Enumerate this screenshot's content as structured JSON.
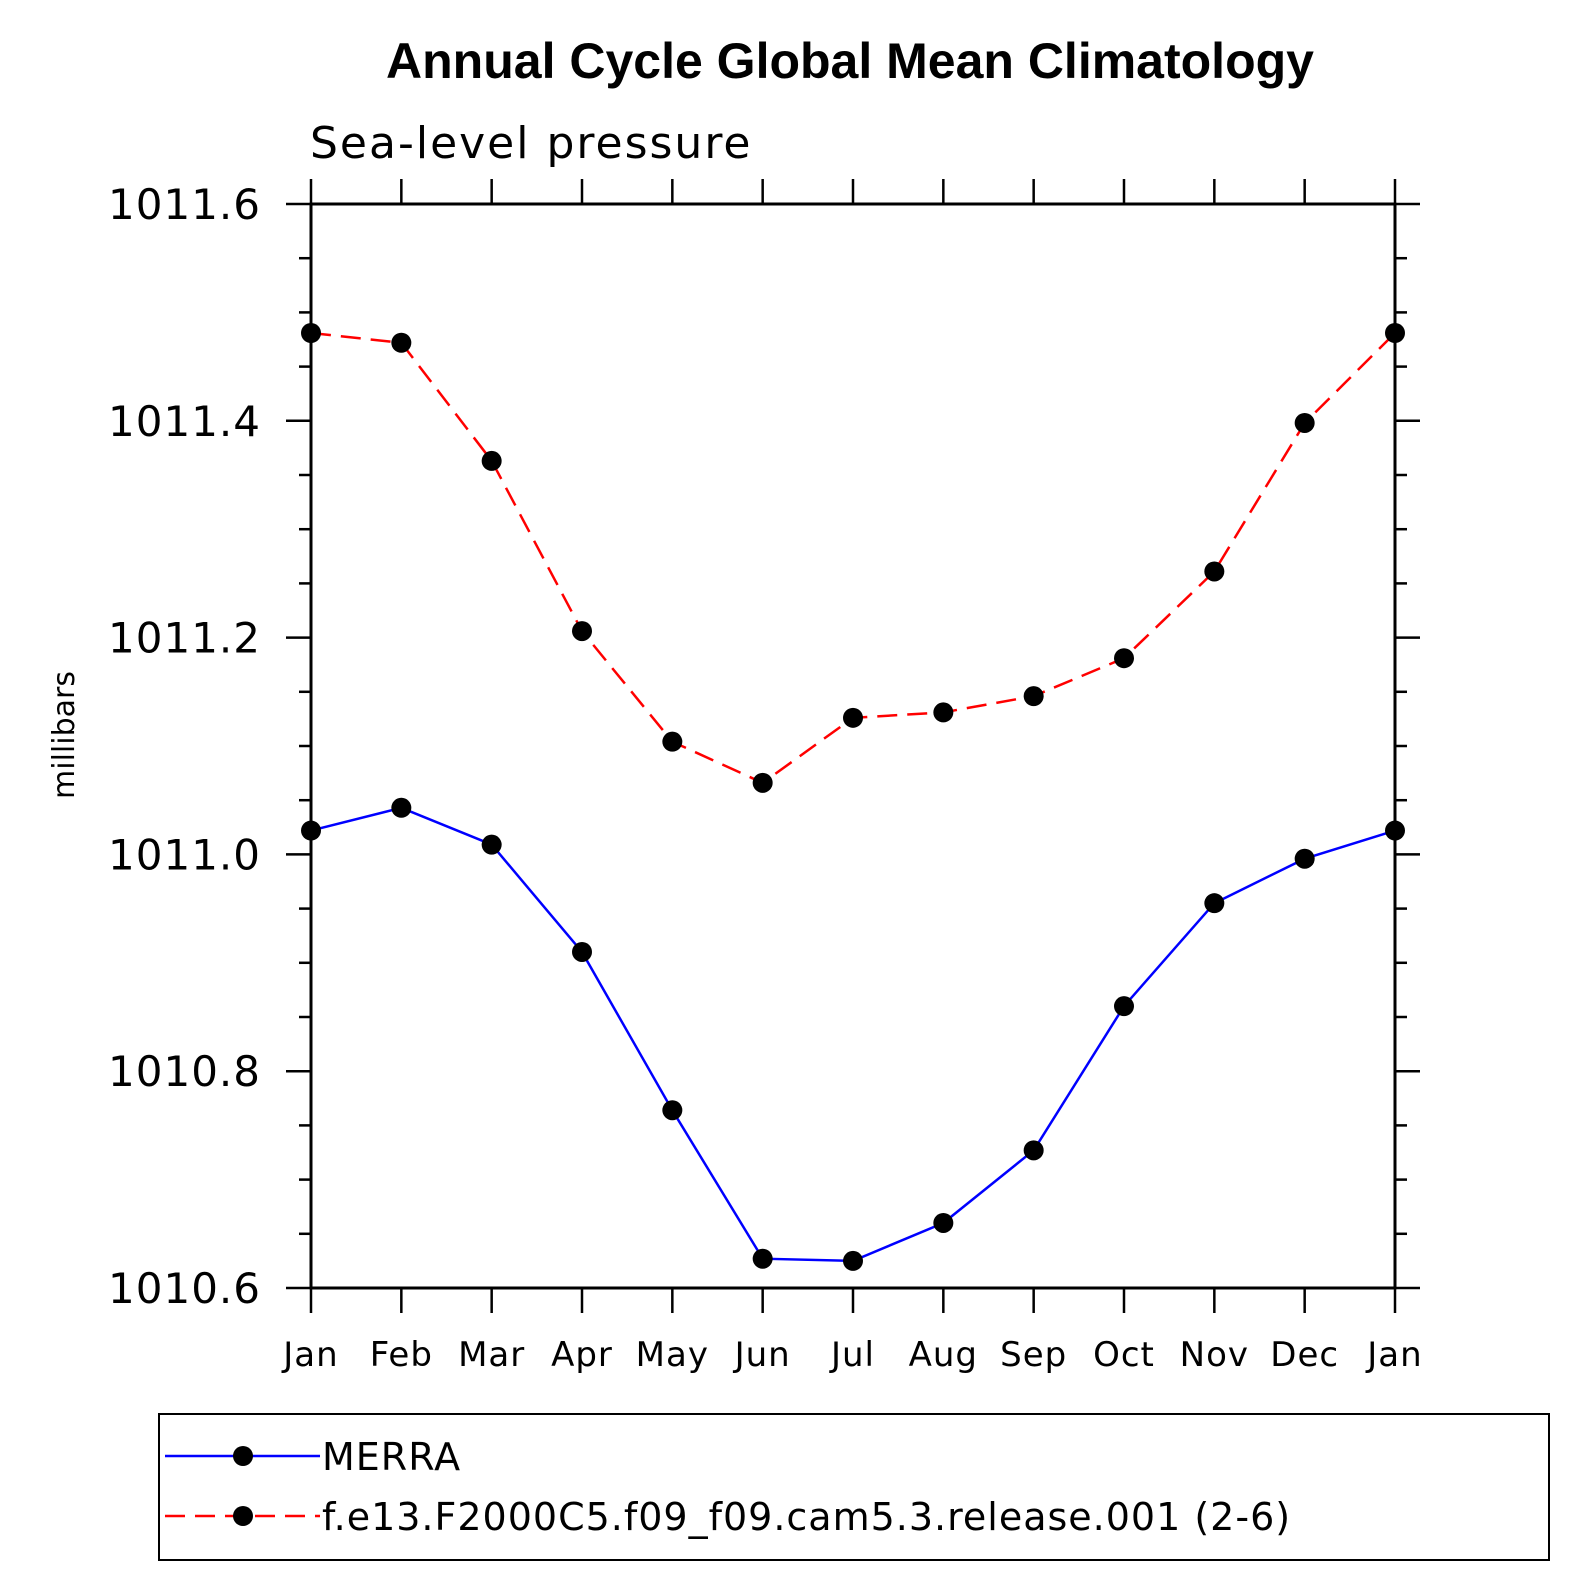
{
  "chart_data": {
    "type": "line",
    "title": "Annual Cycle Global Mean Climatology",
    "subtitle": "Sea-level pressure",
    "ylabel": "millibars",
    "xlabel": "",
    "categories": [
      "Jan",
      "Feb",
      "Mar",
      "Apr",
      "May",
      "Jun",
      "Jul",
      "Aug",
      "Sep",
      "Oct",
      "Nov",
      "Dec",
      "Jan"
    ],
    "ylim": [
      1010.6,
      1011.6
    ],
    "yticks": [
      "1010.6",
      "1010.8",
      "1011.0",
      "1011.2",
      "1011.4",
      "1011.6"
    ],
    "legend_position": "bottom",
    "series": [
      {
        "name": "MERRA",
        "color": "#0000ff",
        "line_style": "solid",
        "marker": "filled-circle",
        "values": [
          1011.022,
          1011.043,
          1011.009,
          1010.91,
          1010.764,
          1010.627,
          1010.625,
          1010.66,
          1010.727,
          1010.86,
          1010.955,
          1010.996,
          1011.022
        ]
      },
      {
        "name": "f.e13.F2000C5.f09_f09.cam5.3.release.001 (2-6)",
        "color": "#ff0000",
        "line_style": "dashed",
        "marker": "filled-circle",
        "values": [
          1011.481,
          1011.472,
          1011.363,
          1011.206,
          1011.104,
          1011.066,
          1011.126,
          1011.131,
          1011.146,
          1011.181,
          1011.261,
          1011.398,
          1011.481
        ]
      }
    ]
  }
}
